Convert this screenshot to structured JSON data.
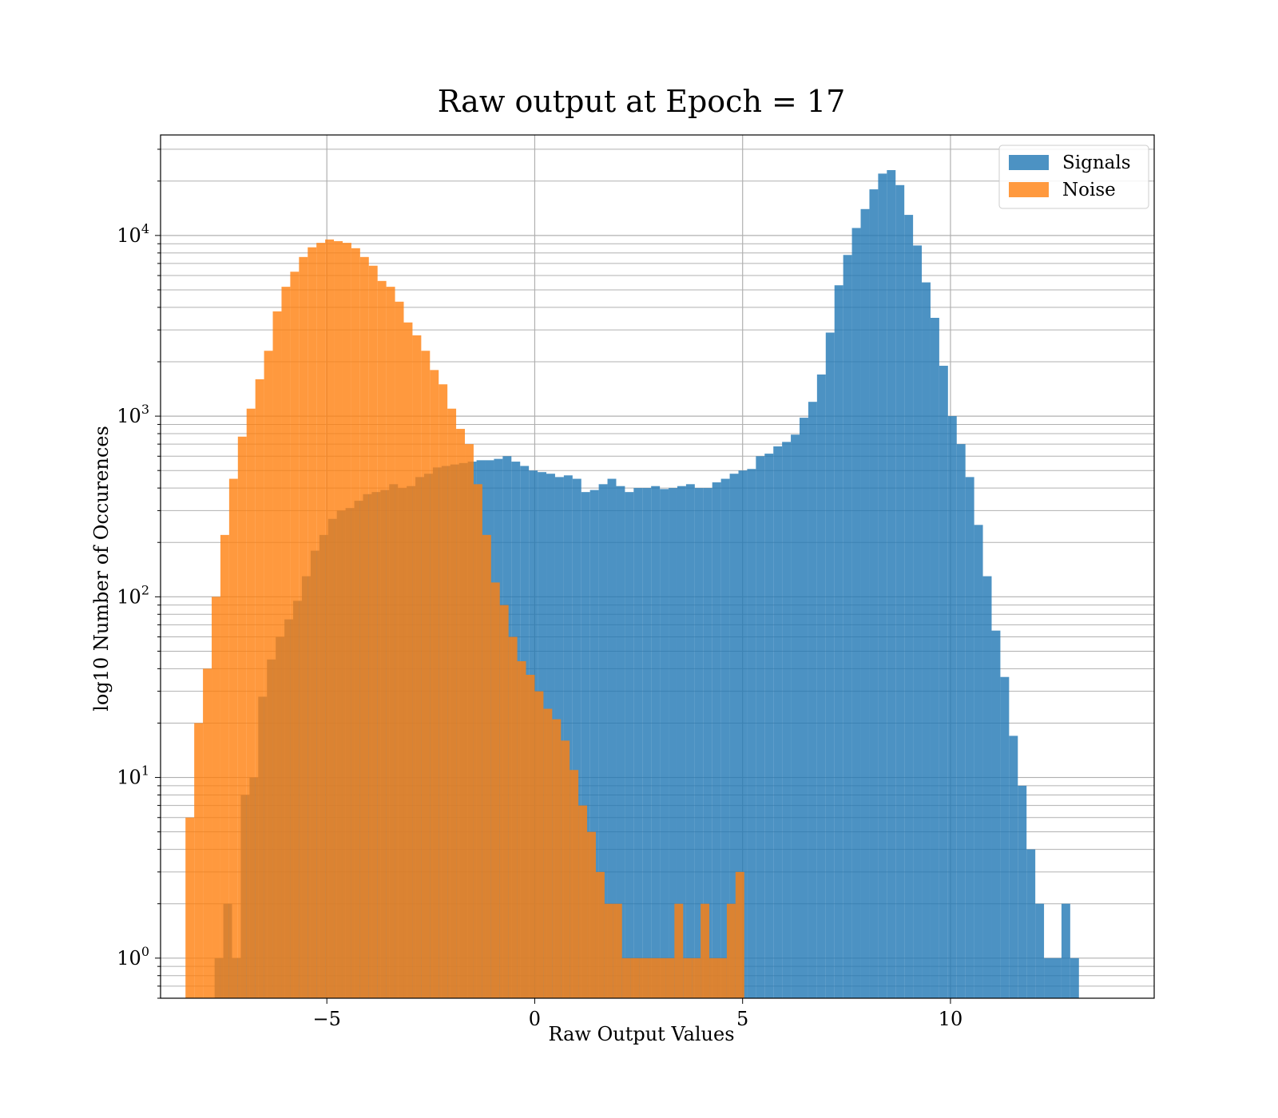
{
  "chart_data": {
    "type": "bar",
    "title": "Raw output at Epoch = 17",
    "xlabel": "Raw Output Values",
    "ylabel": "log10 Number of Occurences",
    "yscale": "log",
    "xlim": [
      -9.0,
      14.9
    ],
    "ylim": [
      0.6,
      36000
    ],
    "bin_width": 0.21,
    "xticks": [
      -5,
      0,
      5,
      10
    ],
    "xtick_labels": [
      "−5",
      "0",
      "5",
      "10"
    ],
    "yticks": [
      1,
      10,
      100,
      1000,
      10000
    ],
    "ytick_labels": [
      "10",
      "10",
      "10",
      "10",
      "10"
    ],
    "ytick_exponents": [
      "0",
      "1",
      "2",
      "3",
      "4"
    ],
    "grid": true,
    "legend_position": "top-right",
    "series": [
      {
        "name": "Signals",
        "color": "#1f77b4",
        "opacity": 0.8,
        "x_start": -7.7,
        "values": [
          1,
          2,
          1,
          8,
          10,
          28,
          45,
          60,
          75,
          95,
          130,
          180,
          220,
          270,
          300,
          310,
          340,
          370,
          380,
          390,
          420,
          400,
          410,
          460,
          480,
          520,
          530,
          540,
          550,
          560,
          570,
          570,
          580,
          600,
          560,
          530,
          500,
          490,
          480,
          460,
          470,
          450,
          380,
          390,
          420,
          450,
          410,
          380,
          400,
          400,
          410,
          395,
          400,
          410,
          420,
          400,
          400,
          430,
          450,
          480,
          500,
          510,
          600,
          620,
          680,
          720,
          790,
          980,
          1200,
          1700,
          2900,
          5300,
          7800,
          11000,
          14000,
          18000,
          22000,
          23000,
          19000,
          13000,
          8800,
          5500,
          3500,
          1900,
          1000,
          700,
          460,
          250,
          130,
          65,
          36,
          17,
          9,
          4,
          2,
          1,
          1,
          2,
          1
        ]
      },
      {
        "name": "Noise",
        "color": "#ff7f0e",
        "opacity": 0.8,
        "x_start": -8.4,
        "values": [
          6,
          20,
          40,
          100,
          220,
          450,
          770,
          1100,
          1600,
          2300,
          3800,
          5200,
          6300,
          7600,
          8600,
          9100,
          9500,
          9300,
          9100,
          8500,
          7600,
          6800,
          5600,
          5200,
          4300,
          3300,
          2800,
          2300,
          1800,
          1500,
          1100,
          850,
          700,
          420,
          220,
          120,
          90,
          60,
          44,
          37,
          30,
          24,
          21,
          16,
          11,
          7,
          5,
          3,
          2,
          2,
          1,
          1,
          1,
          1,
          1,
          1,
          2,
          1,
          1,
          2,
          1,
          1,
          2,
          3
        ]
      }
    ]
  }
}
